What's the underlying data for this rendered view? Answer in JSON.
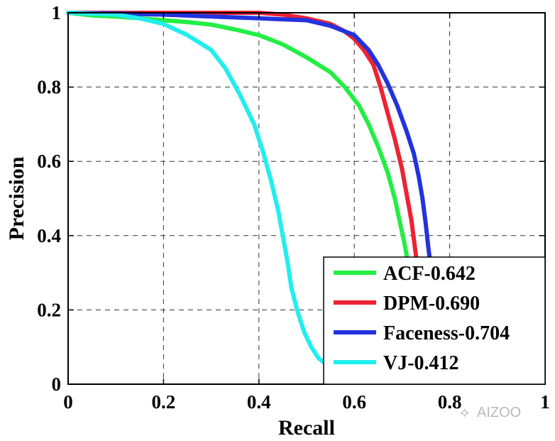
{
  "chart_data": {
    "type": "line",
    "title": "",
    "xlabel": "Recall",
    "ylabel": "Precision",
    "xlim": [
      0,
      1
    ],
    "ylim": [
      0,
      1
    ],
    "xticks": [
      0,
      0.2,
      0.4,
      0.6,
      0.8,
      1
    ],
    "yticks": [
      0,
      0.2,
      0.4,
      0.6,
      0.8,
      1
    ],
    "xtick_labels": [
      "0",
      "0.2",
      "0.4",
      "0.6",
      "0.8",
      "1"
    ],
    "ytick_labels": [
      "0",
      "0.2",
      "0.4",
      "0.6",
      "0.8",
      "1"
    ],
    "grid": true,
    "legend_position": "bottom-right",
    "series": [
      {
        "name": "ACF-0.642",
        "color": "#22ee44",
        "points": [
          [
            0,
            1.0
          ],
          [
            0.05,
            0.993
          ],
          [
            0.1,
            0.99
          ],
          [
            0.15,
            0.985
          ],
          [
            0.2,
            0.98
          ],
          [
            0.25,
            0.975
          ],
          [
            0.3,
            0.968
          ],
          [
            0.35,
            0.955
          ],
          [
            0.4,
            0.94
          ],
          [
            0.45,
            0.915
          ],
          [
            0.5,
            0.88
          ],
          [
            0.55,
            0.84
          ],
          [
            0.58,
            0.8
          ],
          [
            0.61,
            0.75
          ],
          [
            0.63,
            0.7
          ],
          [
            0.65,
            0.64
          ],
          [
            0.67,
            0.57
          ],
          [
            0.685,
            0.5
          ],
          [
            0.695,
            0.44
          ],
          [
            0.705,
            0.38
          ],
          [
            0.712,
            0.33
          ]
        ]
      },
      {
        "name": "DPM-0.690",
        "color": "#ee2233",
        "points": [
          [
            0,
            1.0
          ],
          [
            0.1,
            1.0
          ],
          [
            0.2,
            1.0
          ],
          [
            0.3,
            1.0
          ],
          [
            0.4,
            1.0
          ],
          [
            0.45,
            0.995
          ],
          [
            0.5,
            0.985
          ],
          [
            0.55,
            0.97
          ],
          [
            0.58,
            0.95
          ],
          [
            0.6,
            0.93
          ],
          [
            0.62,
            0.9
          ],
          [
            0.64,
            0.86
          ],
          [
            0.655,
            0.8
          ],
          [
            0.67,
            0.73
          ],
          [
            0.685,
            0.66
          ],
          [
            0.7,
            0.58
          ],
          [
            0.71,
            0.51
          ],
          [
            0.72,
            0.44
          ],
          [
            0.727,
            0.37
          ],
          [
            0.732,
            0.32
          ]
        ]
      },
      {
        "name": "Faceness-0.704",
        "color": "#2233dd",
        "points": [
          [
            0,
            1.0
          ],
          [
            0.1,
            0.998
          ],
          [
            0.2,
            0.995
          ],
          [
            0.3,
            0.99
          ],
          [
            0.4,
            0.985
          ],
          [
            0.5,
            0.98
          ],
          [
            0.55,
            0.965
          ],
          [
            0.6,
            0.94
          ],
          [
            0.63,
            0.9
          ],
          [
            0.65,
            0.86
          ],
          [
            0.67,
            0.81
          ],
          [
            0.69,
            0.75
          ],
          [
            0.71,
            0.68
          ],
          [
            0.725,
            0.62
          ],
          [
            0.735,
            0.56
          ],
          [
            0.743,
            0.5
          ],
          [
            0.75,
            0.43
          ],
          [
            0.755,
            0.37
          ],
          [
            0.76,
            0.32
          ]
        ]
      },
      {
        "name": "VJ-0.412",
        "color": "#22eeee",
        "points": [
          [
            0,
            1.0
          ],
          [
            0.1,
            0.995
          ],
          [
            0.15,
            0.985
          ],
          [
            0.2,
            0.97
          ],
          [
            0.25,
            0.94
          ],
          [
            0.3,
            0.9
          ],
          [
            0.33,
            0.85
          ],
          [
            0.36,
            0.78
          ],
          [
            0.39,
            0.7
          ],
          [
            0.41,
            0.62
          ],
          [
            0.425,
            0.55
          ],
          [
            0.44,
            0.47
          ],
          [
            0.45,
            0.4
          ],
          [
            0.46,
            0.33
          ],
          [
            0.468,
            0.26
          ],
          [
            0.48,
            0.2
          ],
          [
            0.495,
            0.14
          ],
          [
            0.51,
            0.1
          ],
          [
            0.525,
            0.07
          ],
          [
            0.535,
            0.06
          ]
        ]
      }
    ]
  },
  "watermark": "AIZOO"
}
